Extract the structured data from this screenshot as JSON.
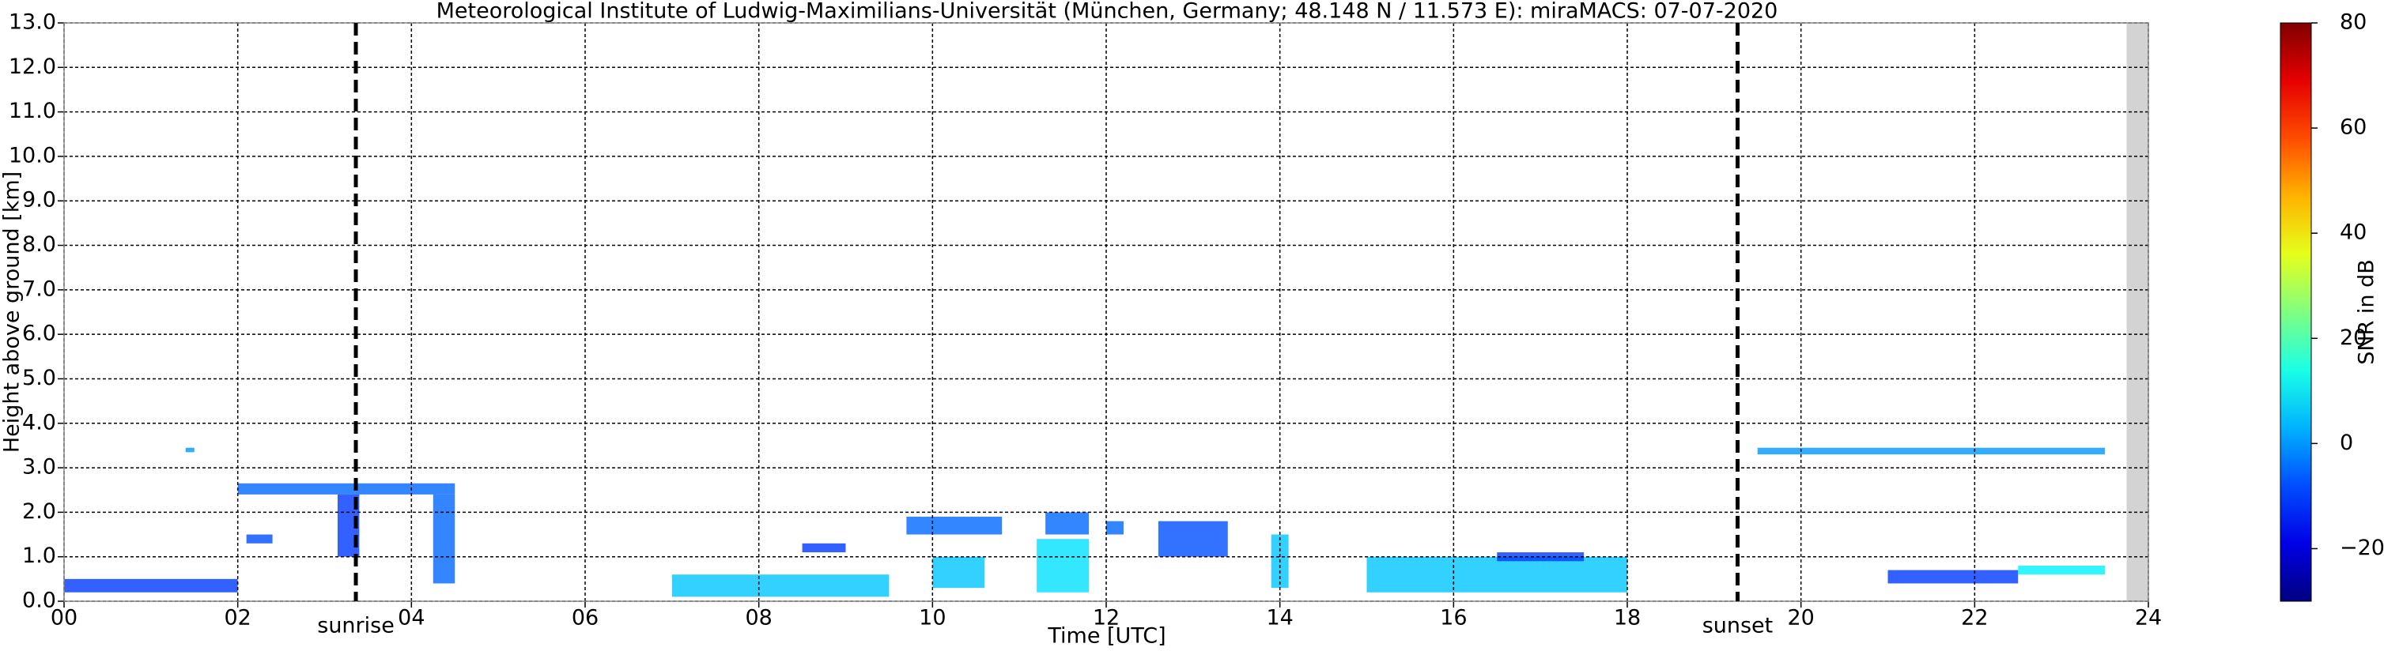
{
  "chart_data": {
    "type": "heatmap",
    "title": "Meteorological Institute of Ludwig-Maximilians-Universität (München, Germany; 48.148 N / 11.573 E):    miraMACS: 07-07-2020",
    "x_label": "Time [UTC]",
    "y_label": "Height above ground [km]",
    "colorbar_label": "SNR in dB",
    "xlim": [
      0,
      24
    ],
    "xticks": [
      {
        "value": 0,
        "label": "00"
      },
      {
        "value": 2,
        "label": "02"
      },
      {
        "value": 4,
        "label": "04"
      },
      {
        "value": 6,
        "label": "06"
      },
      {
        "value": 8,
        "label": "08"
      },
      {
        "value": 10,
        "label": "10"
      },
      {
        "value": 12,
        "label": "12"
      },
      {
        "value": 14,
        "label": "14"
      },
      {
        "value": 16,
        "label": "16"
      },
      {
        "value": 18,
        "label": "18"
      },
      {
        "value": 20,
        "label": "20"
      },
      {
        "value": 22,
        "label": "22"
      },
      {
        "value": 24,
        "label": "24"
      }
    ],
    "ylim": [
      0,
      13
    ],
    "yticks": [
      {
        "value": 0,
        "label": "0.0"
      },
      {
        "value": 1,
        "label": "1.0"
      },
      {
        "value": 2,
        "label": "2.0"
      },
      {
        "value": 3,
        "label": "3.0"
      },
      {
        "value": 4,
        "label": "4.0"
      },
      {
        "value": 5,
        "label": "5.0"
      },
      {
        "value": 6,
        "label": "6.0"
      },
      {
        "value": 7,
        "label": "7.0"
      },
      {
        "value": 8,
        "label": "8.0"
      },
      {
        "value": 9,
        "label": "9.0"
      },
      {
        "value": 10,
        "label": "10.0"
      },
      {
        "value": 11,
        "label": "11.0"
      },
      {
        "value": 12,
        "label": "12.0"
      },
      {
        "value": 13,
        "label": "13.0"
      }
    ],
    "clim": [
      -30,
      80
    ],
    "cticks": [
      {
        "value": -20,
        "label": "−20"
      },
      0,
      20,
      40,
      60,
      80
    ],
    "colormap": "jet",
    "grid": true,
    "data_end": 23.75,
    "annotations": [
      {
        "text": "sunrise",
        "x": 3.36
      },
      {
        "text": "sunset",
        "x": 19.27
      }
    ],
    "patches": [
      {
        "t": [
          0.0,
          2.0
        ],
        "h": [
          0.2,
          0.5
        ],
        "snr": -10
      },
      {
        "t": [
          2.0,
          4.5
        ],
        "h": [
          2.4,
          2.65
        ],
        "snr": -5
      },
      {
        "t": [
          3.15,
          3.4
        ],
        "h": [
          1.0,
          2.4
        ],
        "snr": -10
      },
      {
        "t": [
          4.25,
          4.5
        ],
        "h": [
          0.4,
          2.4
        ],
        "snr": -5
      },
      {
        "t": [
          2.1,
          2.4
        ],
        "h": [
          1.3,
          1.5
        ],
        "snr": -8
      },
      {
        "t": [
          1.4,
          1.5
        ],
        "h": [
          3.35,
          3.45
        ],
        "snr": 0
      },
      {
        "t": [
          7.0,
          9.5
        ],
        "h": [
          0.1,
          0.6
        ],
        "snr": 5
      },
      {
        "t": [
          8.5,
          9.0
        ],
        "h": [
          1.1,
          1.3
        ],
        "snr": -10
      },
      {
        "t": [
          9.7,
          10.8
        ],
        "h": [
          1.5,
          1.9
        ],
        "snr": -5
      },
      {
        "t": [
          10.0,
          10.6
        ],
        "h": [
          0.3,
          1.0
        ],
        "snr": 5
      },
      {
        "t": [
          11.3,
          11.8
        ],
        "h": [
          1.5,
          2.0
        ],
        "snr": -5
      },
      {
        "t": [
          11.2,
          11.8
        ],
        "h": [
          0.2,
          1.4
        ],
        "snr": 8
      },
      {
        "t": [
          12.0,
          12.2
        ],
        "h": [
          1.5,
          1.8
        ],
        "snr": -5
      },
      {
        "t": [
          12.6,
          13.4
        ],
        "h": [
          1.0,
          1.8
        ],
        "snr": -8
      },
      {
        "t": [
          13.9,
          14.1
        ],
        "h": [
          0.3,
          1.5
        ],
        "snr": 5
      },
      {
        "t": [
          15.0,
          18.0
        ],
        "h": [
          0.2,
          1.0
        ],
        "snr": 5
      },
      {
        "t": [
          16.5,
          17.5
        ],
        "h": [
          0.9,
          1.1
        ],
        "snr": -10
      },
      {
        "t": [
          21.0,
          22.5
        ],
        "h": [
          0.4,
          0.7
        ],
        "snr": -10
      },
      {
        "t": [
          22.5,
          23.5
        ],
        "h": [
          0.6,
          0.8
        ],
        "snr": 10
      },
      {
        "t": [
          19.5,
          23.5
        ],
        "h": [
          3.3,
          3.45
        ],
        "snr": 0
      }
    ]
  }
}
